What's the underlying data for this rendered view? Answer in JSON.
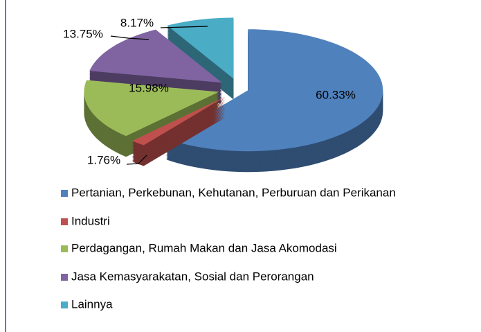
{
  "chart_data": {
    "type": "pie",
    "categories": [
      "Pertanian, Perkebunan, Kehutanan, Perburuan dan Perikanan",
      "Industri",
      "Perdagangan, Rumah Makan dan Jasa Akomodasi",
      "Jasa Kemasyarakatan, Sosial dan Perorangan",
      "Lainnya"
    ],
    "values": [
      60.33,
      1.76,
      15.98,
      13.75,
      8.17
    ],
    "value_labels": [
      "60.33%",
      "1.76%",
      "15.98%",
      "13.75%",
      "8.17%"
    ],
    "colors": [
      "#4f81bd",
      "#c0504d",
      "#9bbb59",
      "#8064a2",
      "#4bacc6"
    ],
    "legend": "bottom"
  }
}
